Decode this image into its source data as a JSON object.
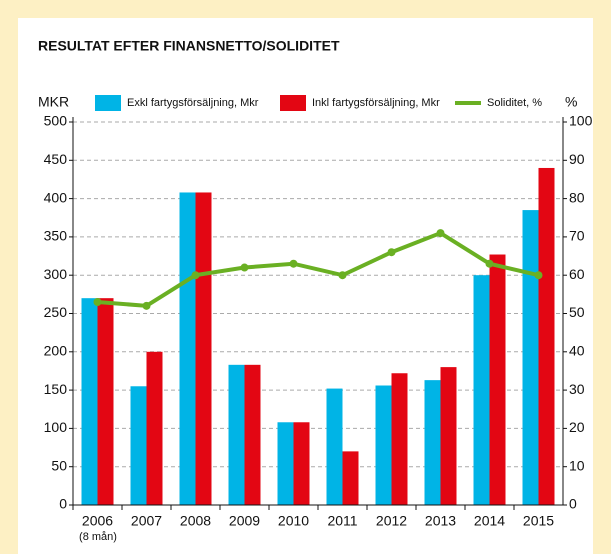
{
  "chart_data": {
    "type": "bar_line",
    "title": "RESULTAT EFTER FINANSNETTO/SOLIDITET",
    "ylabel": "MKR",
    "y2label": "%",
    "categories": [
      "2006",
      "2007",
      "2008",
      "2009",
      "2010",
      "2011",
      "2012",
      "2013",
      "2014",
      "2015"
    ],
    "annotation": "(8 mån)",
    "series": [
      {
        "name": "Exkl fartygsförsäljning, Mkr",
        "color": "#00b4e6",
        "type": "bar",
        "values": [
          270,
          155,
          408,
          183,
          108,
          152,
          156,
          163,
          300,
          385
        ]
      },
      {
        "name": "Inkl fartygsförsäljning, Mkr",
        "color": "#e30613",
        "type": "bar",
        "values": [
          270,
          200,
          408,
          183,
          108,
          70,
          172,
          180,
          327,
          440
        ]
      },
      {
        "name": "Soliditet, %",
        "color": "#6ab023",
        "type": "line",
        "axis": "y2",
        "values": [
          53,
          52,
          60,
          62,
          63,
          60,
          66,
          71,
          63,
          60
        ]
      }
    ],
    "ylim": [
      0,
      500
    ],
    "yticks": [
      0,
      50,
      100,
      150,
      200,
      250,
      300,
      350,
      400,
      450,
      500
    ],
    "y2lim": [
      0,
      100
    ],
    "y2ticks": [
      0,
      10,
      20,
      30,
      40,
      50,
      60,
      70,
      80,
      90,
      100
    ],
    "grid": true
  }
}
